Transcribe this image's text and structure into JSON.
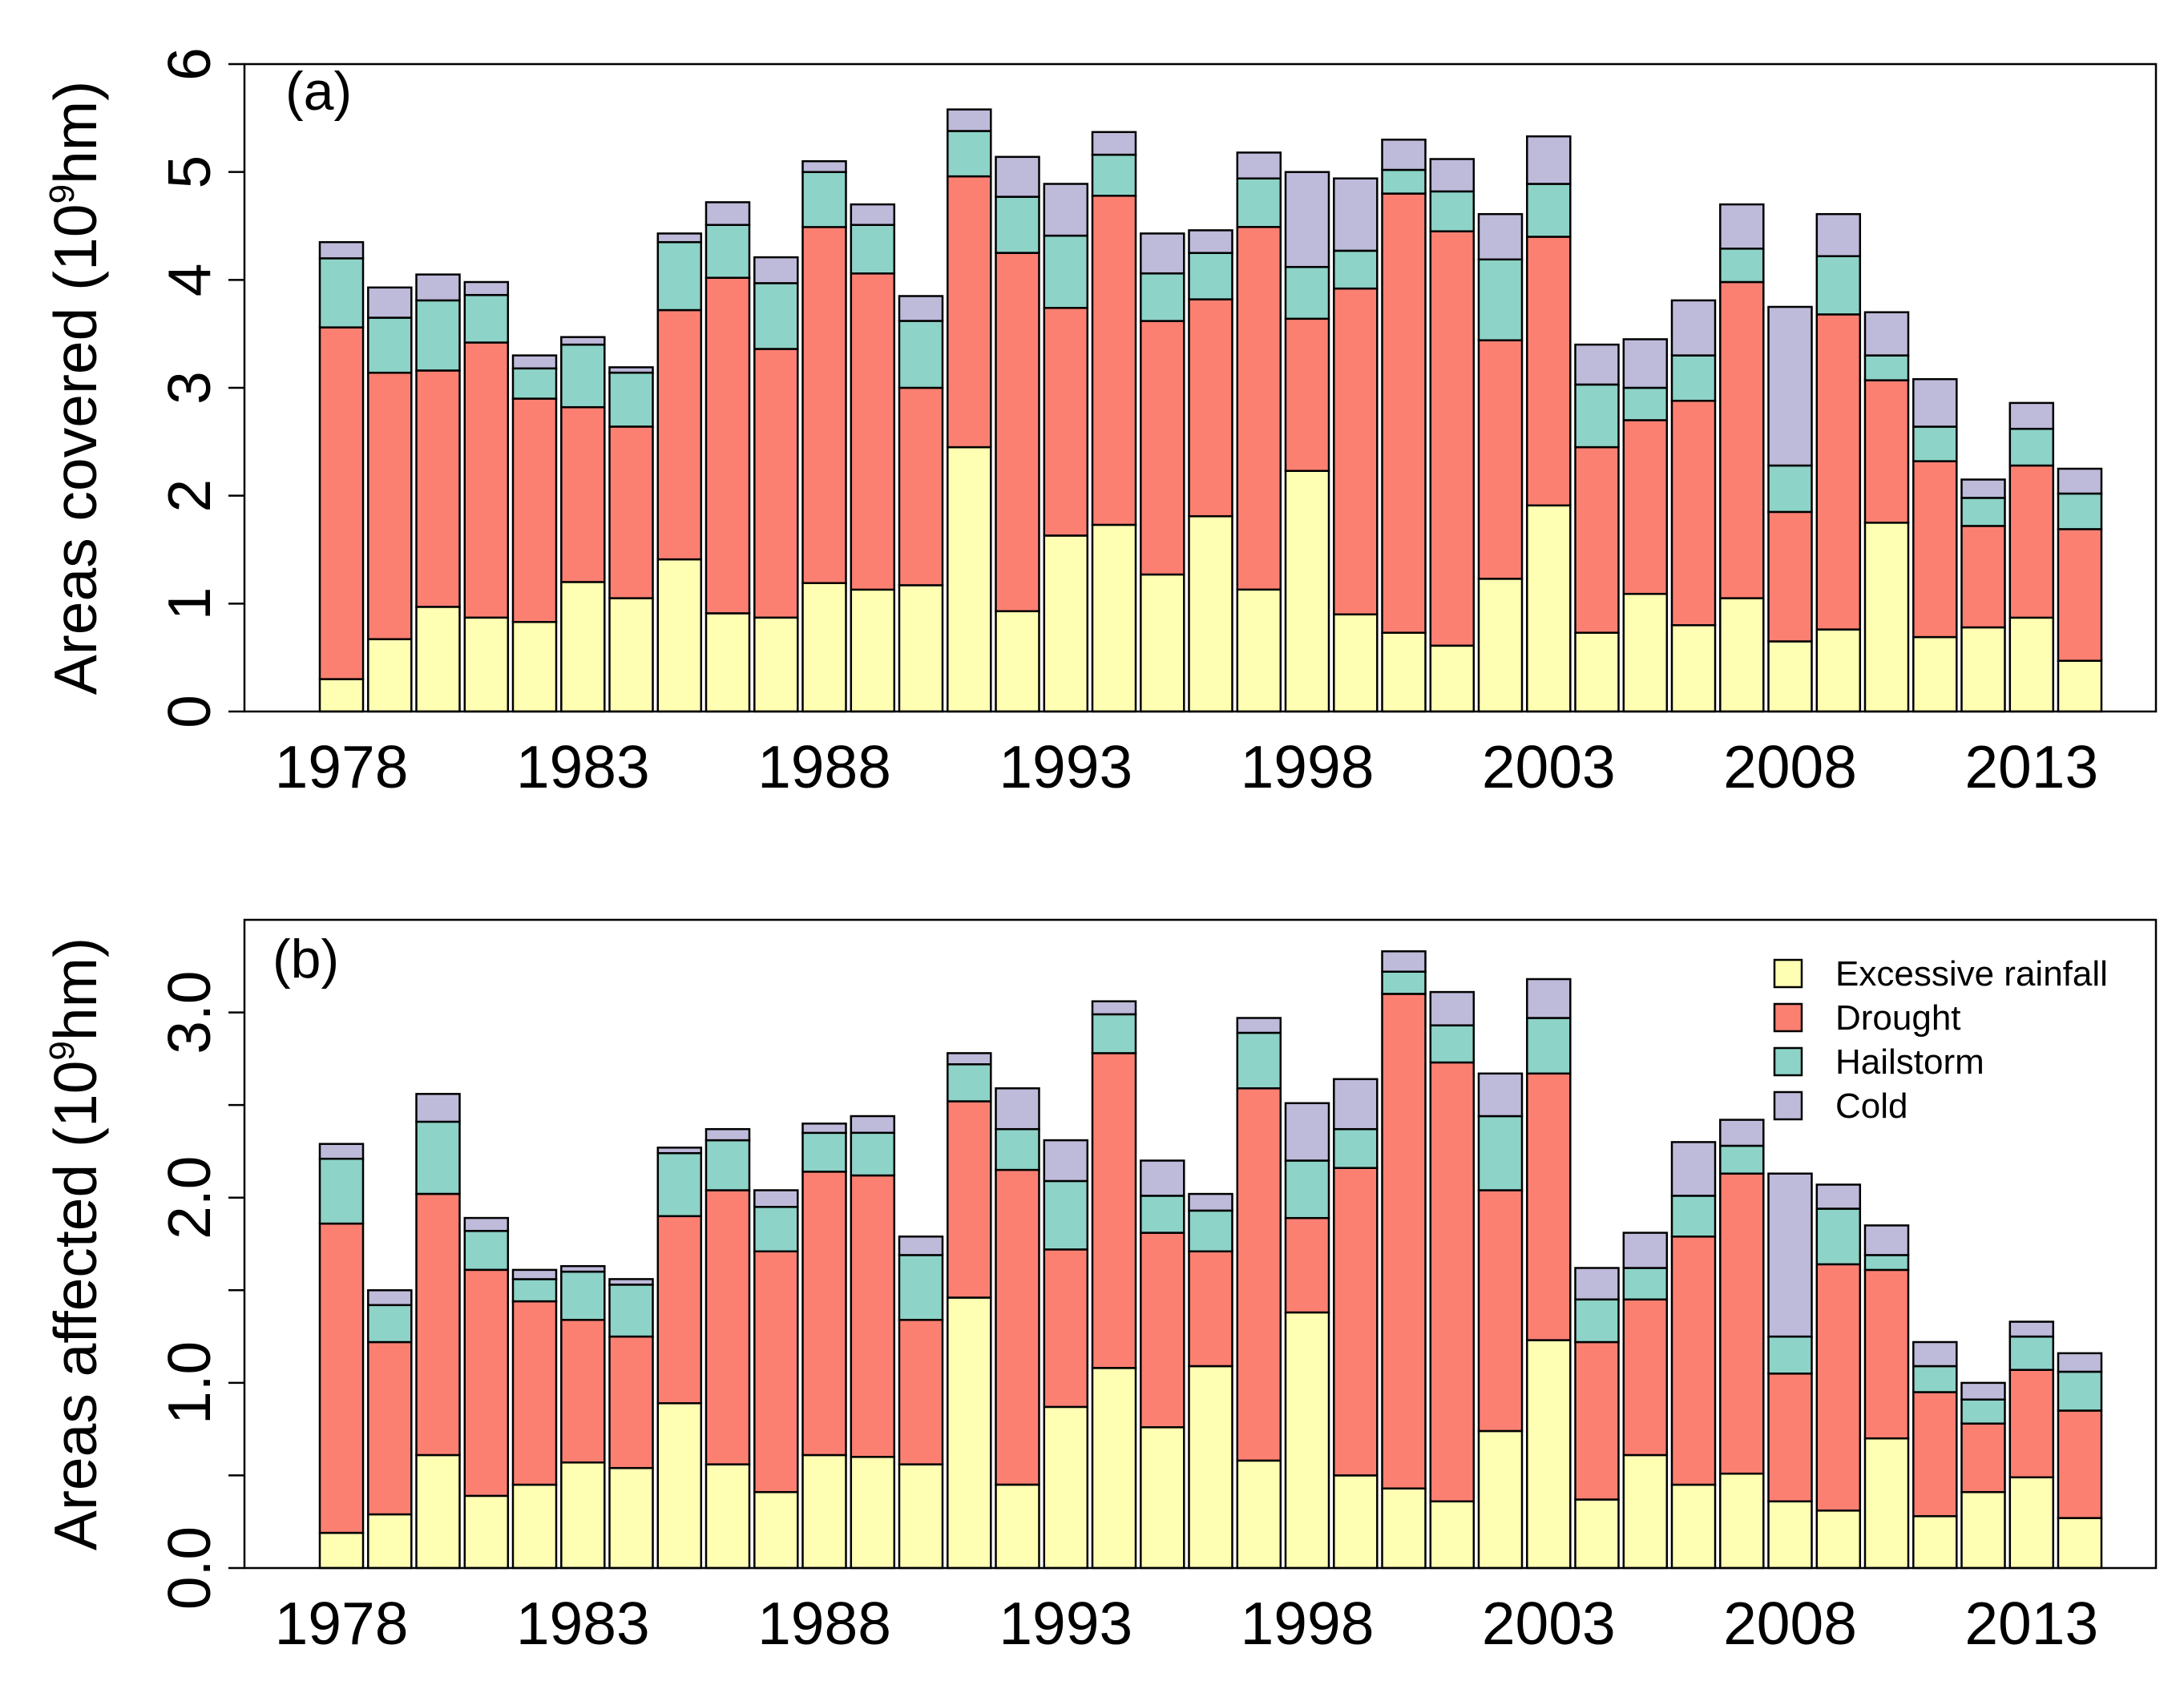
{
  "colors": {
    "excessive_rainfall": "#ffffb3",
    "drought": "#fb8072",
    "hailstorm": "#8dd3c7",
    "cold": "#bebada"
  },
  "chart_data": [
    {
      "type": "bar",
      "stacked": true,
      "panel_label": "(a)",
      "ylabel_main": "Areas covered",
      "ylabel_unit_open": "(10",
      "ylabel_unit_sup": "9",
      "ylabel_unit_close": "hm)",
      "ylim": [
        0,
        6
      ],
      "yticks": [
        0,
        1,
        2,
        3,
        4,
        5,
        6
      ],
      "ytick_labels": [
        "0",
        "1",
        "2",
        "3",
        "4",
        "5",
        "6"
      ],
      "xticks": [
        1978,
        1983,
        1988,
        1993,
        1998,
        2003,
        2008,
        2013
      ],
      "xtick_labels": [
        "1978",
        "1983",
        "1988",
        "1993",
        "1998",
        "2003",
        "2008",
        "2013"
      ],
      "categories": [
        1978,
        1979,
        1980,
        1981,
        1982,
        1983,
        1984,
        1985,
        1986,
        1987,
        1988,
        1989,
        1990,
        1991,
        1992,
        1993,
        1994,
        1995,
        1996,
        1997,
        1998,
        1999,
        2000,
        2001,
        2002,
        2003,
        2004,
        2005,
        2006,
        2007,
        2008,
        2009,
        2010,
        2011,
        2012,
        2013,
        2014
      ],
      "series": [
        {
          "name": "Excessive rainfall",
          "color_key": "excessive_rainfall",
          "values": [
            0.3,
            0.67,
            0.97,
            0.87,
            0.83,
            1.2,
            1.05,
            1.41,
            0.91,
            0.87,
            1.19,
            1.13,
            1.17,
            2.45,
            0.93,
            1.63,
            1.73,
            1.27,
            1.81,
            1.13,
            2.23,
            0.9,
            0.73,
            0.61,
            1.23,
            1.91,
            0.73,
            1.09,
            0.8,
            1.05,
            0.65,
            0.76,
            1.75,
            0.69,
            0.78,
            0.87,
            0.47
          ]
        },
        {
          "name": "Drought",
          "color_key": "drought",
          "values": [
            3.26,
            2.47,
            2.19,
            2.55,
            2.07,
            1.62,
            1.59,
            2.31,
            3.11,
            2.49,
            3.3,
            2.93,
            1.83,
            2.51,
            3.32,
            2.11,
            3.05,
            2.35,
            2.01,
            3.36,
            1.41,
            3.02,
            4.07,
            3.84,
            2.21,
            2.49,
            1.72,
            1.61,
            2.08,
            2.93,
            1.2,
            2.92,
            1.32,
            1.63,
            0.94,
            1.41,
            1.22
          ]
        },
        {
          "name": "Hailstorm",
          "color_key": "hailstorm",
          "values": [
            0.64,
            0.51,
            0.65,
            0.44,
            0.28,
            0.58,
            0.5,
            0.63,
            0.49,
            0.61,
            0.51,
            0.45,
            0.62,
            0.42,
            0.52,
            0.67,
            0.38,
            0.44,
            0.43,
            0.45,
            0.48,
            0.35,
            0.22,
            0.37,
            0.75,
            0.49,
            0.58,
            0.3,
            0.42,
            0.31,
            0.43,
            0.54,
            0.23,
            0.32,
            0.26,
            0.34,
            0.33
          ]
        },
        {
          "name": "Cold",
          "color_key": "cold",
          "values": [
            0.15,
            0.28,
            0.24,
            0.12,
            0.12,
            0.07,
            0.05,
            0.08,
            0.21,
            0.24,
            0.1,
            0.19,
            0.23,
            0.2,
            0.37,
            0.48,
            0.21,
            0.37,
            0.21,
            0.24,
            0.88,
            0.67,
            0.28,
            0.3,
            0.42,
            0.44,
            0.37,
            0.45,
            0.51,
            0.41,
            1.47,
            0.39,
            0.4,
            0.44,
            0.17,
            0.24,
            0.23
          ]
        }
      ]
    },
    {
      "type": "bar",
      "stacked": true,
      "panel_label": "(b)",
      "ylabel_main": "Areas affected",
      "ylabel_unit_open": "(10",
      "ylabel_unit_sup": "9",
      "ylabel_unit_close": "hm)",
      "ylim": [
        0,
        3.5
      ],
      "yticks": [
        0,
        1,
        2,
        3
      ],
      "ytick_labels": [
        "0.0",
        "1.0",
        "2.0",
        "3.0"
      ],
      "minor_yticks": [
        0.5,
        1.5,
        2.5
      ],
      "xticks": [
        1978,
        1983,
        1988,
        1993,
        1998,
        2003,
        2008,
        2013
      ],
      "xtick_labels": [
        "1978",
        "1983",
        "1988",
        "1993",
        "1998",
        "2003",
        "2008",
        "2013"
      ],
      "legend_position": "top-right",
      "categories": [
        1978,
        1979,
        1980,
        1981,
        1982,
        1983,
        1984,
        1985,
        1986,
        1987,
        1988,
        1989,
        1990,
        1991,
        1992,
        1993,
        1994,
        1995,
        1996,
        1997,
        1998,
        1999,
        2000,
        2001,
        2002,
        2003,
        2004,
        2005,
        2006,
        2007,
        2008,
        2009,
        2010,
        2011,
        2012,
        2013,
        2014
      ],
      "series": [
        {
          "name": "Excessive rainfall",
          "color_key": "excessive_rainfall",
          "values": [
            0.19,
            0.29,
            0.61,
            0.39,
            0.45,
            0.57,
            0.54,
            0.89,
            0.56,
            0.41,
            0.61,
            0.6,
            0.56,
            1.46,
            0.45,
            0.87,
            1.08,
            0.76,
            1.09,
            0.58,
            1.38,
            0.5,
            0.43,
            0.36,
            0.74,
            1.23,
            0.37,
            0.61,
            0.45,
            0.51,
            0.36,
            0.31,
            0.7,
            0.28,
            0.41,
            0.49,
            0.27
          ]
        },
        {
          "name": "Drought",
          "color_key": "drought",
          "values": [
            1.67,
            0.93,
            1.41,
            1.22,
            0.99,
            0.77,
            0.71,
            1.01,
            1.48,
            1.3,
            1.53,
            1.52,
            0.78,
            1.06,
            1.7,
            0.85,
            1.7,
            1.05,
            0.62,
            2.01,
            0.51,
            1.66,
            2.67,
            2.37,
            1.3,
            1.44,
            0.85,
            0.84,
            1.34,
            1.62,
            0.69,
            1.33,
            0.91,
            0.67,
            0.37,
            0.58,
            0.58
          ]
        },
        {
          "name": "Hailstorm",
          "color_key": "hailstorm",
          "values": [
            0.35,
            0.2,
            0.39,
            0.21,
            0.12,
            0.26,
            0.28,
            0.34,
            0.27,
            0.24,
            0.21,
            0.23,
            0.35,
            0.2,
            0.22,
            0.37,
            0.21,
            0.2,
            0.22,
            0.3,
            0.31,
            0.21,
            0.12,
            0.2,
            0.4,
            0.3,
            0.23,
            0.17,
            0.22,
            0.15,
            0.2,
            0.3,
            0.08,
            0.14,
            0.13,
            0.18,
            0.21
          ]
        },
        {
          "name": "Cold",
          "color_key": "cold",
          "values": [
            0.08,
            0.08,
            0.15,
            0.07,
            0.05,
            0.03,
            0.03,
            0.03,
            0.06,
            0.09,
            0.05,
            0.09,
            0.1,
            0.06,
            0.22,
            0.22,
            0.07,
            0.19,
            0.09,
            0.08,
            0.31,
            0.27,
            0.11,
            0.18,
            0.23,
            0.21,
            0.17,
            0.19,
            0.29,
            0.14,
            0.88,
            0.13,
            0.16,
            0.13,
            0.09,
            0.08,
            0.1
          ]
        }
      ]
    }
  ]
}
